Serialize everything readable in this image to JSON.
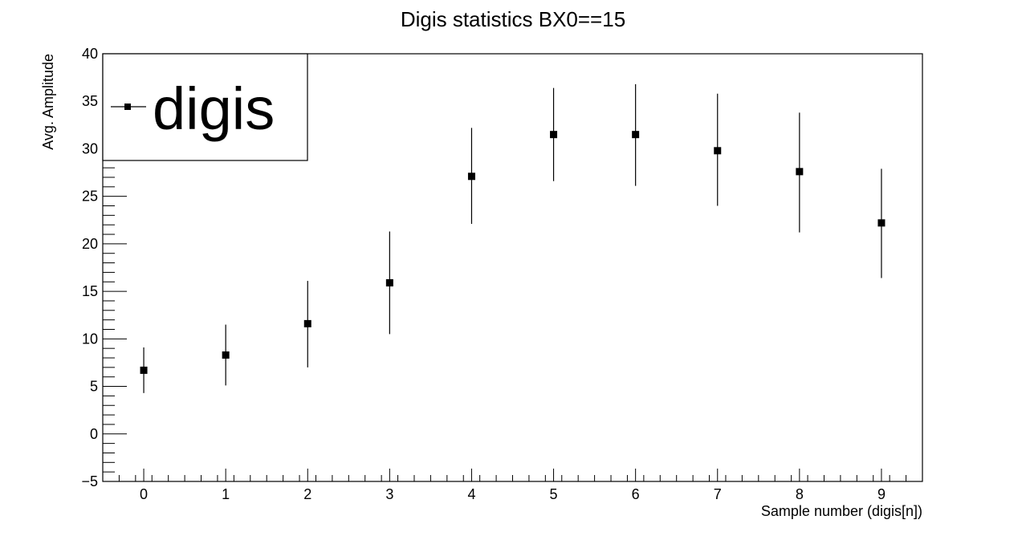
{
  "chart_data": {
    "type": "scatter",
    "title": "Digis statistics BX0==15",
    "xlabel": "Sample number (digis[n])",
    "ylabel": "Avg. Amplitude",
    "xlim": [
      -0.5,
      9.5
    ],
    "ylim": [
      -5,
      40
    ],
    "x_ticks": [
      0,
      1,
      2,
      3,
      4,
      5,
      6,
      7,
      8,
      9
    ],
    "y_ticks": [
      -5,
      0,
      5,
      10,
      15,
      20,
      25,
      30,
      35,
      40
    ],
    "grid": false,
    "legend_position": "top-left",
    "series": [
      {
        "name": "digis",
        "marker": "square",
        "color": "#000000",
        "x": [
          0,
          1,
          2,
          3,
          4,
          5,
          6,
          7,
          8,
          9
        ],
        "y": [
          6.7,
          8.3,
          11.6,
          15.9,
          27.1,
          31.5,
          31.5,
          29.8,
          27.6,
          22.2
        ],
        "err_low": [
          2.4,
          3.2,
          4.6,
          5.4,
          5.0,
          4.9,
          5.4,
          5.8,
          6.4,
          5.8
        ],
        "err_high": [
          2.4,
          3.2,
          4.5,
          5.4,
          5.1,
          4.9,
          5.3,
          6.0,
          6.2,
          5.7
        ]
      }
    ]
  }
}
